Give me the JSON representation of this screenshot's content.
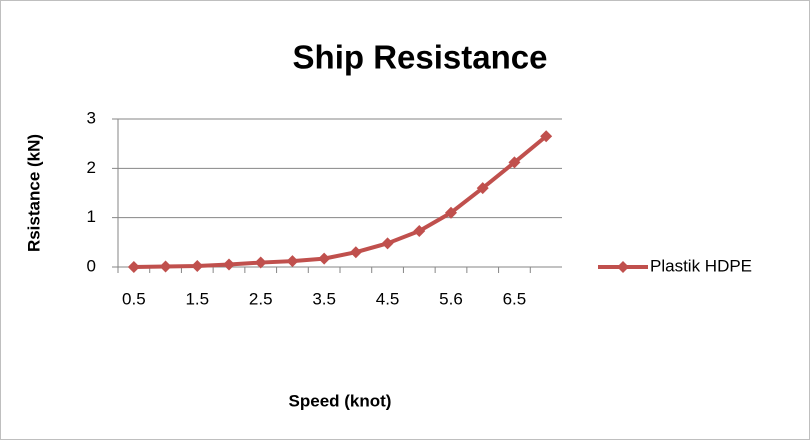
{
  "chart_data": {
    "type": "line",
    "title": "Ship Resistance",
    "x_label": "Speed (knot)",
    "y_label": "Rsistance (kN)",
    "categories": [
      0.5,
      null,
      1.5,
      null,
      2.5,
      null,
      3.5,
      null,
      4.5,
      null,
      5.6,
      null,
      6.5,
      null
    ],
    "series": [
      {
        "name": "Plastik HDPE",
        "color": "#c0504d",
        "values": [
          0,
          0.01,
          0.02,
          0.05,
          0.09,
          0.12,
          0.17,
          0.3,
          0.48,
          0.73,
          1.1,
          1.6,
          2.12,
          2.65
        ]
      }
    ],
    "ylim": [
      0,
      3
    ],
    "yticks": [
      0,
      1,
      2,
      3
    ],
    "grid": true,
    "legend": "right"
  }
}
